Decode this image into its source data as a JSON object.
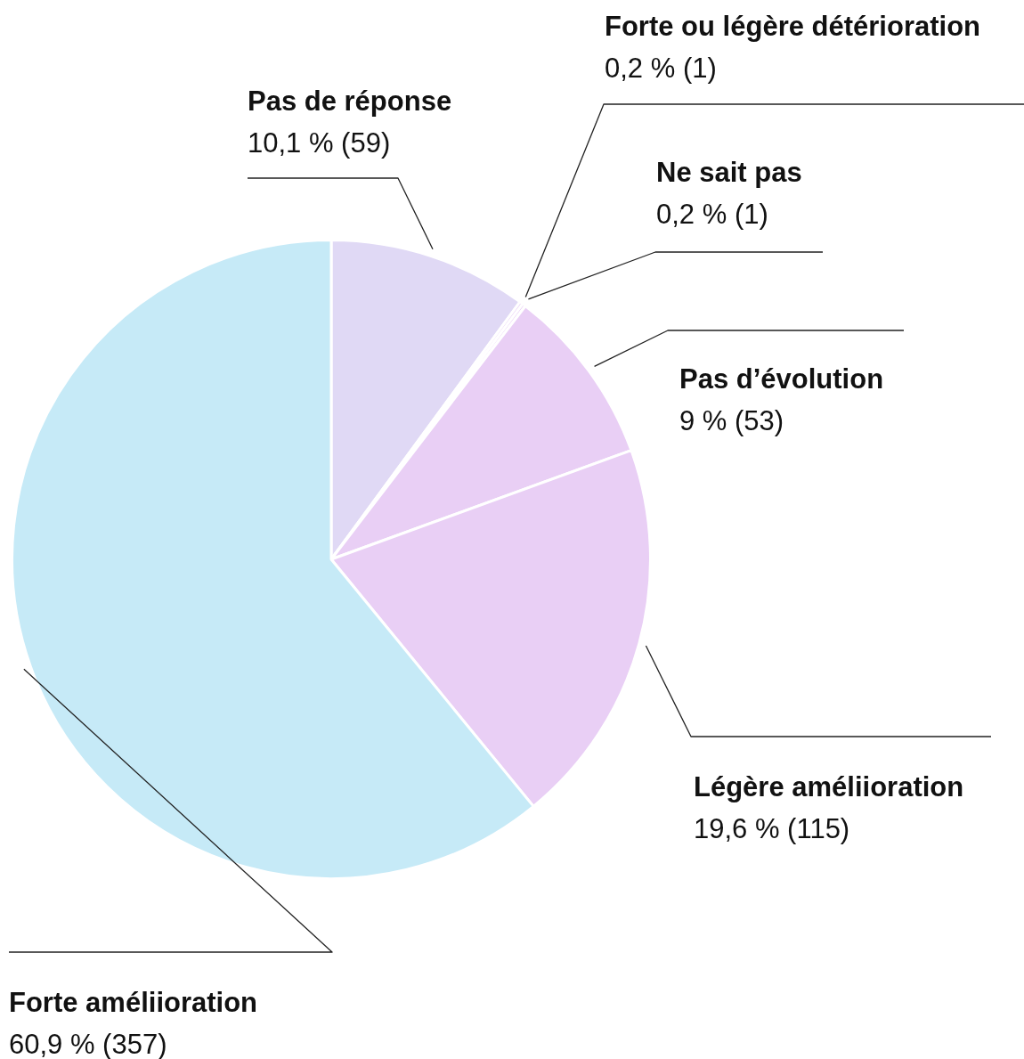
{
  "chart_data": {
    "type": "pie",
    "categories": [
      "Pas de réponse",
      "Forte ou légère détérioration",
      "Ne sait pas",
      "Pas d’évolution",
      "Légère améliioration",
      "Forte améliioration"
    ],
    "values": [
      59,
      1,
      1,
      53,
      115,
      357
    ],
    "colors": [
      "#e0d9f5",
      "#e9cff5",
      "#e9cff5",
      "#e9cff5",
      "#e9cff5",
      "#c6eaf7"
    ],
    "value_labels": [
      "10,1 % (59)",
      "0,2 % (1)",
      "0,2 % (1)",
      "9 % (53)",
      "19,6 % (115)",
      "60,9 % (357)"
    ]
  }
}
